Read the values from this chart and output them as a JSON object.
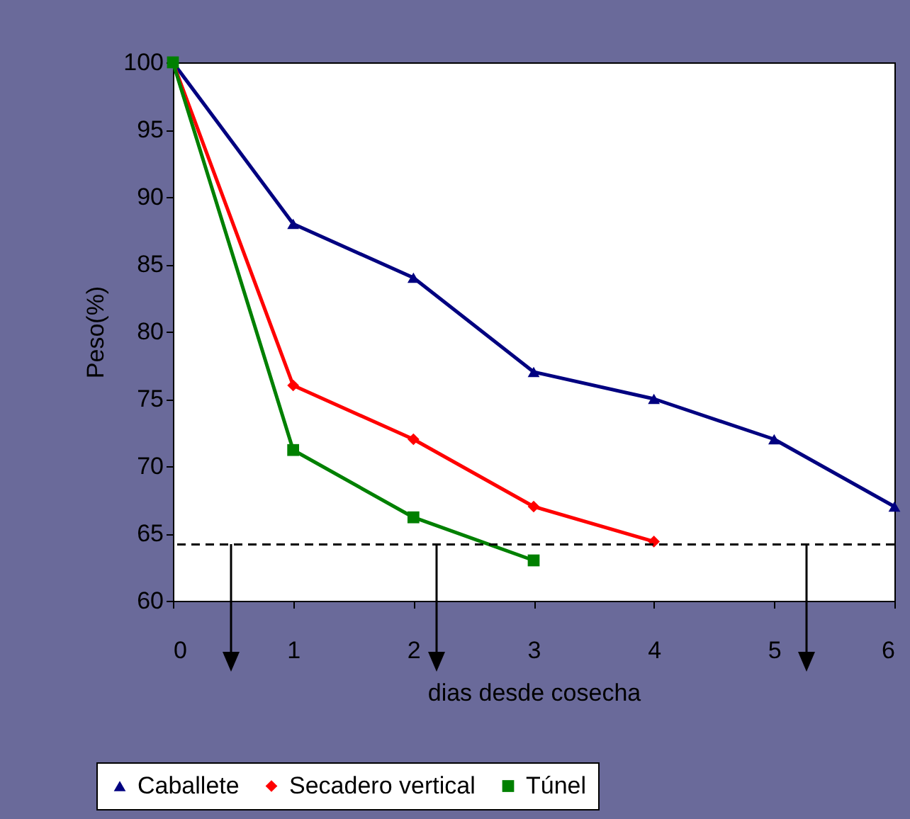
{
  "chart_data": {
    "type": "line",
    "xlabel": "dias desde cosecha",
    "ylabel": "Peso(%)",
    "x": [
      0,
      1,
      2,
      3,
      4,
      5,
      6
    ],
    "series": [
      {
        "name": "Caballete",
        "color": "#000080",
        "marker": "triangle",
        "values": [
          100,
          88,
          84,
          77,
          75,
          72,
          67
        ]
      },
      {
        "name": "Secadero vertical",
        "color": "#ff0000",
        "marker": "diamond",
        "values": [
          100,
          76,
          72,
          67,
          64.4,
          null,
          null
        ]
      },
      {
        "name": "Túnel",
        "color": "#008000",
        "marker": "square",
        "values": [
          100,
          71.2,
          66.2,
          63,
          null,
          null,
          null
        ]
      }
    ],
    "xlim": [
      0,
      6
    ],
    "xticks": [
      0,
      1,
      2,
      3,
      4,
      5,
      6
    ],
    "ylim": [
      60,
      100
    ],
    "yticks": [
      60,
      65,
      70,
      75,
      80,
      85,
      90,
      95,
      100
    ],
    "ref_lines": [
      {
        "axis": "y",
        "value": 64.2,
        "line_style": "dashed",
        "color": "#000000"
      }
    ],
    "grid": false,
    "legend": "bottom",
    "line_style": "solid"
  }
}
